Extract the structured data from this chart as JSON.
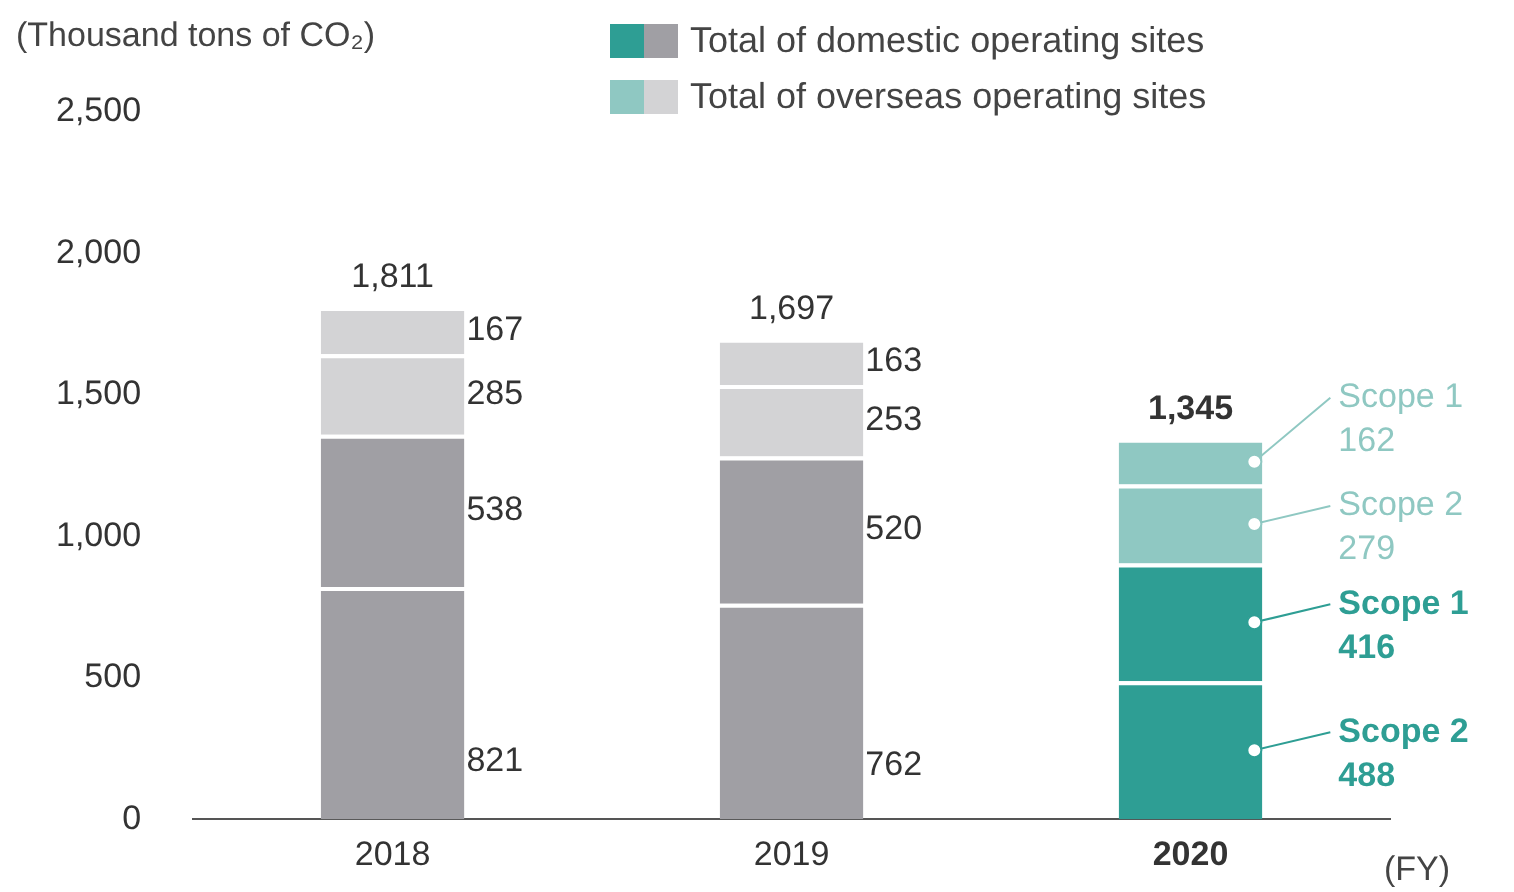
{
  "chart_data": {
    "type": "bar",
    "stacked": true,
    "ylabel": "(Thousand tons of CO₂)",
    "xlabel": "(FY)",
    "categories": [
      "2018",
      "2019",
      "2020"
    ],
    "series": [
      {
        "name": "Scope 2",
        "colors": [
          "#a09fa4",
          "#a09fa4",
          "#2e9e94"
        ],
        "values": [
          821,
          762,
          488
        ]
      },
      {
        "name": "Scope 1",
        "colors": [
          "#a09fa4",
          "#a09fa4",
          "#2e9e94"
        ],
        "values": [
          538,
          520,
          416
        ]
      },
      {
        "name": "Scope 2",
        "colors": [
          "#d3d3d5",
          "#d3d3d5",
          "#8fc8c2"
        ],
        "values": [
          285,
          253,
          279
        ]
      },
      {
        "name": "Scope 1",
        "colors": [
          "#d3d3d5",
          "#d3d3d5",
          "#8fc8c2"
        ],
        "values": [
          167,
          163,
          162
        ]
      }
    ],
    "totals": [
      "1,811",
      "1,697",
      "1,345"
    ],
    "data_labels": true,
    "legend": "right",
    "ylim": [
      0,
      2500
    ],
    "yticks": [
      {
        "value": 0,
        "label": "0"
      },
      {
        "value": 500,
        "label": "500"
      },
      {
        "value": 1000,
        "label": "1,000"
      },
      {
        "value": 1500,
        "label": "1,500"
      },
      {
        "value": 2000,
        "label": "2,000"
      },
      {
        "value": 2500,
        "label": "2,500"
      }
    ],
    "annotations": [
      "Total of domestic operating sites",
      "Total of overseas operating sites"
    ]
  }
}
